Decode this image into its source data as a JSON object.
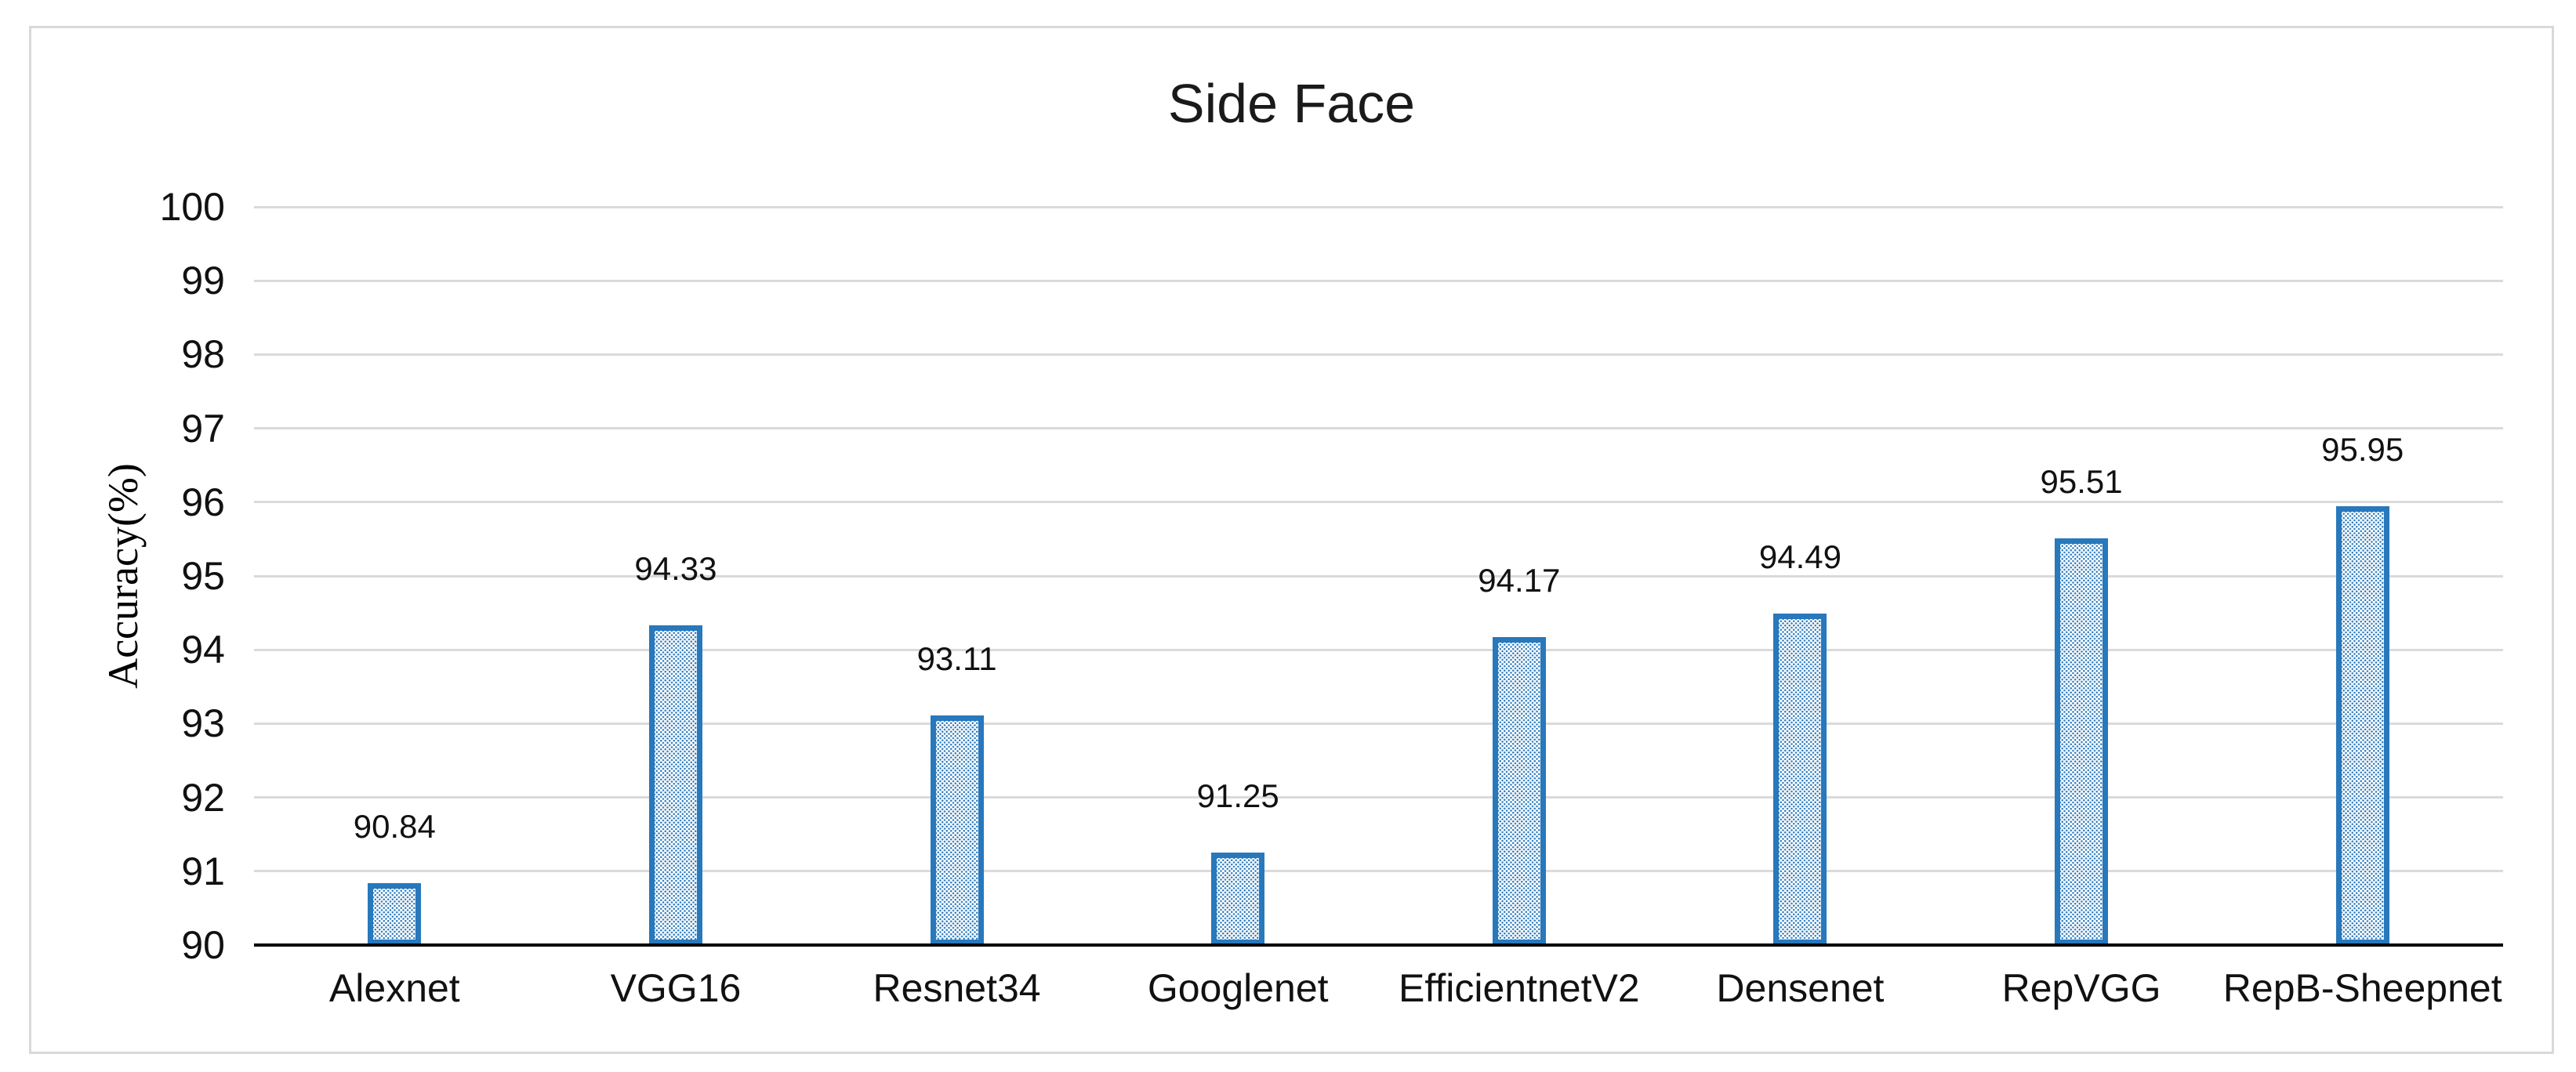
{
  "figure": {
    "background_color": "#ffffff",
    "frame_border_color": "#d9d9d9"
  },
  "chart_data": {
    "type": "bar",
    "title": "Side Face",
    "xlabel": "",
    "ylabel": "Accuracy(%)",
    "categories": [
      "Alexnet",
      "VGG16",
      "Resnet34",
      "Googlenet",
      "EfficientnetV2",
      "Densenet",
      "RepVGG",
      "RepB-Sheepnet"
    ],
    "values": [
      90.84,
      94.33,
      93.11,
      91.25,
      94.17,
      94.49,
      95.51,
      95.95
    ],
    "data_labels": [
      "90.84",
      "94.33",
      "93.11",
      "91.25",
      "94.17",
      "94.49",
      "95.51",
      "95.95"
    ],
    "ylim": [
      90,
      100
    ],
    "yticks": [
      90,
      91,
      92,
      93,
      94,
      95,
      96,
      97,
      98,
      99,
      100
    ],
    "grid": "horizontal",
    "legend": "none",
    "bar_border_color": "#2878bc",
    "bar_fill_style": "light-blue-dotted-diagonal-hatch",
    "gridline_color": "#dadada",
    "axis_line_color": "#000000",
    "text_color": "#111111"
  }
}
